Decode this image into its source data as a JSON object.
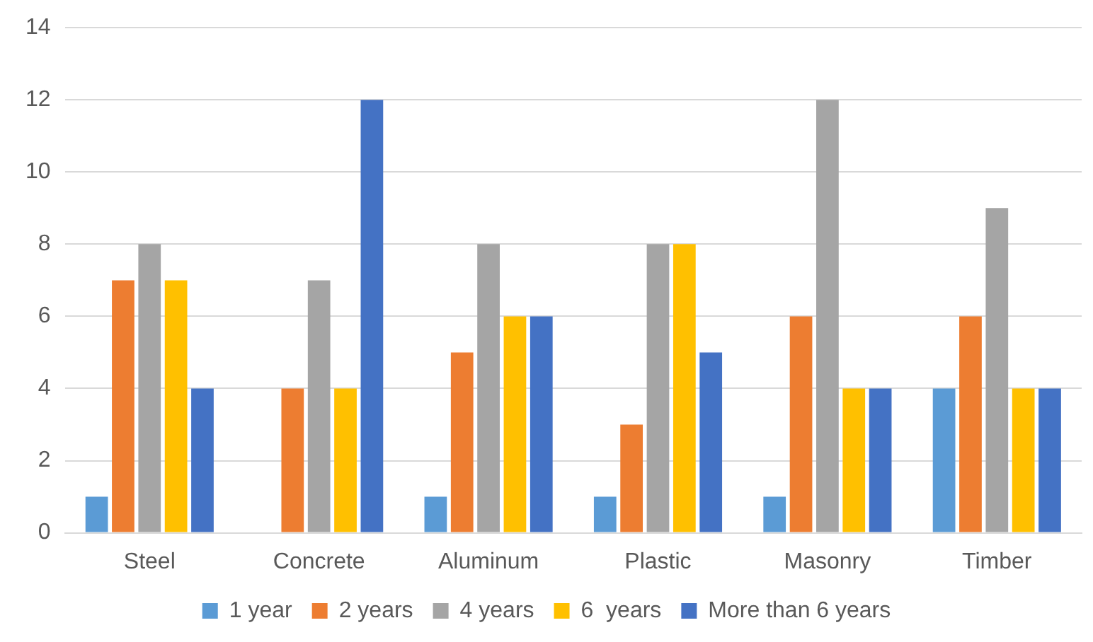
{
  "chart_data": {
    "type": "bar",
    "categories": [
      "Steel",
      "Concrete",
      "Aluminum",
      "Plastic",
      "Masonry",
      "Timber"
    ],
    "series": [
      {
        "name": "1 year",
        "color": "#5b9bd5",
        "values": [
          1,
          0,
          1,
          1,
          1,
          4
        ]
      },
      {
        "name": "2 years",
        "color": "#ed7d31",
        "values": [
          7,
          4,
          5,
          3,
          6,
          6
        ]
      },
      {
        "name": "4 years",
        "color": "#a5a5a5",
        "values": [
          8,
          7,
          8,
          8,
          12,
          9
        ]
      },
      {
        "name": "6  years",
        "color": "#ffc000",
        "values": [
          7,
          4,
          6,
          8,
          4,
          4
        ]
      },
      {
        "name": "More than 6 years",
        "color": "#4472c4",
        "values": [
          4,
          12,
          6,
          5,
          4,
          4
        ]
      }
    ],
    "ylim": [
      0,
      14
    ],
    "yticks": [
      0,
      2,
      4,
      6,
      8,
      10,
      12,
      14
    ],
    "grid": "y",
    "legend": "bottom"
  }
}
